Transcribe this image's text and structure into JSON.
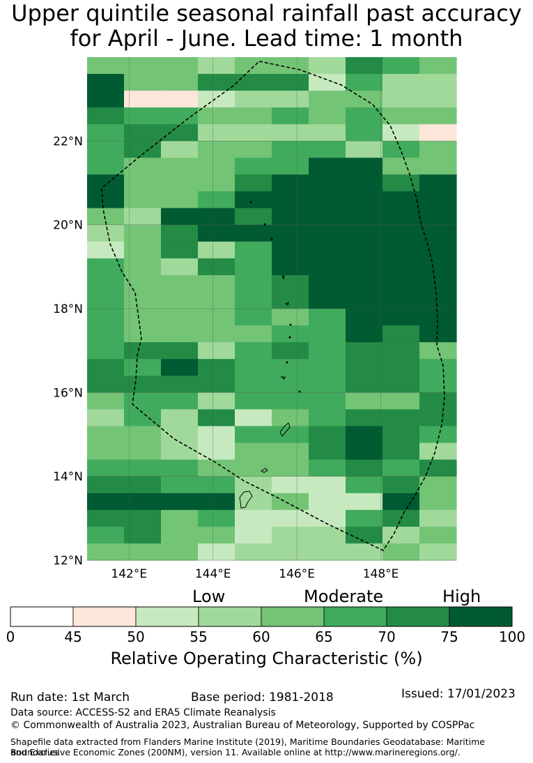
{
  "title": {
    "line1": "Upper quintile seasonal rainfall past accuracy",
    "line2": "for April - June. Lead time: 1 month"
  },
  "map": {
    "lat_ticks": [
      "12°N",
      "14°N",
      "16°N",
      "18°N",
      "20°N",
      "22°N"
    ],
    "lon_ticks": [
      "142°E",
      "144°E",
      "146°E",
      "148°E"
    ],
    "lat_tick_values": [
      12,
      14,
      16,
      18,
      20,
      22
    ],
    "lon_tick_values": [
      142,
      144,
      146,
      148
    ],
    "lat_range": [
      12,
      24
    ],
    "lon_range": [
      141,
      149.8
    ],
    "grid_rows_north_to_south": [
      "4443443654",
      "7446662533",
      "7112334433",
      "6554454544",
      "5663333521",
      "5634455354",
      "5444557744",
      "7444677767",
      "7445777777",
      "4377677777",
      "3467777777",
      "2463577777",
      "5436577777",
      "5444567777",
      "5444567777",
      "5444545777",
      "5444455767",
      "5663565664",
      "6576555665",
      "6666555665",
      "4553555446",
      "3536245666",
      "4432556765",
      "4432446763",
      "5554445656",
      "6655322564",
      "7777342274",
      "6645222563",
      "5644233634",
      "4442333343"
    ],
    "color_levels": {
      "0": "#ffffff",
      "1": "#fee6da",
      "2": "#c7e9c0",
      "3": "#a1d99b",
      "4": "#74c476",
      "5": "#41ab5d",
      "6": "#238b45",
      "7": "#005a32"
    },
    "boundary_label": "",
    "islands": "Northern Mariana Islands and Guam"
  },
  "colorbar": {
    "ticks": [
      "0",
      "45",
      "50",
      "55",
      "60",
      "65",
      "70",
      "75",
      "100"
    ],
    "colors": [
      "#ffffff",
      "#fee6da",
      "#c7e9c0",
      "#a1d99b",
      "#74c476",
      "#41ab5d",
      "#238b45",
      "#005a32"
    ],
    "category_low": "Low",
    "category_moderate": "Moderate",
    "category_high": "High",
    "label": "Relative Operating Characteristic (%)"
  },
  "footer": {
    "run_date": "Run date: 1st March",
    "base_period": "Base period: 1981-2018",
    "issued": "Issued: 17/01/2023",
    "data_source": "Data source: ACCESS-S2 and ERA5 Climate Reanalysis",
    "copyright": "© Commonwealth of Australia 2023, Australian Bureau of Meteorology, Supported by COSPPac",
    "shapefile_line1": "Shapefile data extracted from Flanders Marine Institute (2019), Maritime Boundaries Geodatabase: Maritime Boundaries",
    "shapefile_line2": "and Exclusive Economic Zones (200NM), version 11. Available online at http://www.marineregions.org/."
  }
}
